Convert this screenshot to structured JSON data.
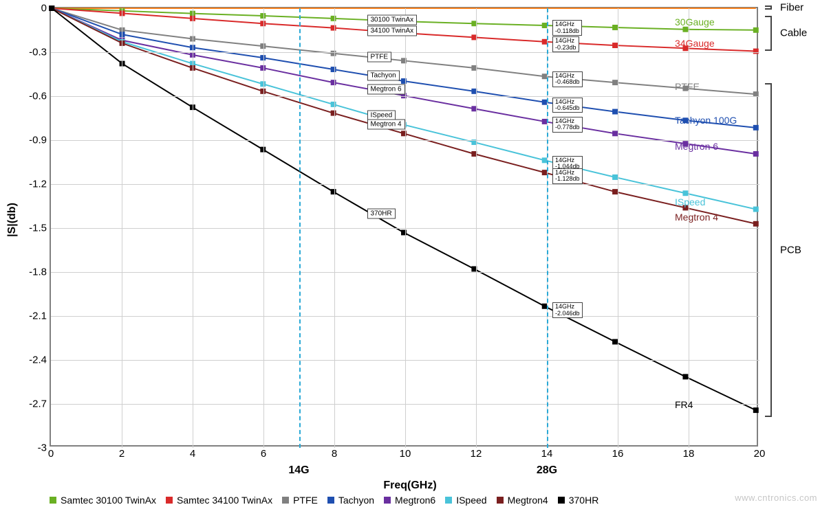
{
  "chart": {
    "type": "line",
    "xlabel": "Freq(GHz)",
    "ylabel": "|S|(db)",
    "xlim": [
      0,
      20
    ],
    "ylim": [
      -3,
      0
    ],
    "xtick_step": 2,
    "ytick_step": 0.3,
    "xticks": [
      0,
      2,
      4,
      6,
      8,
      10,
      12,
      14,
      16,
      18,
      20
    ],
    "yticks": [
      0,
      -0.3,
      -0.6,
      -0.9,
      -1.2,
      -1.5,
      -1.8,
      -2.1,
      -2.4,
      -2.7,
      -3
    ],
    "grid_color": "#cfcfcf",
    "background_color": "#ffffff",
    "axis_color": "#808080",
    "line_width": 2,
    "marker_size": 8,
    "marker_style": "square",
    "label_fontsize": 15,
    "axis_title_fontsize": 16,
    "reference_lines": {
      "color": "#2aa9d6",
      "dash": "5,4",
      "lines": [
        {
          "x": 7,
          "sublabel": "14G"
        },
        {
          "x": 14,
          "sublabel": "28G"
        }
      ]
    },
    "series": [
      {
        "name": "Fiber",
        "legend": null,
        "color": "#f58220",
        "end_label": null,
        "x": [
          0,
          2,
          4,
          6,
          8,
          10,
          12,
          14,
          16,
          18,
          20
        ],
        "y": [
          0,
          0,
          0,
          0,
          0,
          0,
          0,
          0,
          0,
          0,
          0
        ],
        "markers": false,
        "line_box": null,
        "callout": null
      },
      {
        "name": "Samtec 30100 TwinAx",
        "legend": "Samtec 30100 TwinAx",
        "color": "#6ab023",
        "end_label": "30Gauge",
        "x": [
          0,
          2,
          4,
          6,
          8,
          10,
          12,
          14,
          16,
          18,
          20
        ],
        "y": [
          0,
          -0.018,
          -0.036,
          -0.052,
          -0.07,
          -0.09,
          -0.105,
          -0.118,
          -0.132,
          -0.145,
          -0.15
        ],
        "markers": true,
        "line_box": {
          "text": "30100 TwinAx",
          "x": 9
        },
        "callout": {
          "x": 14,
          "lines": [
            "14GHz",
            "-0.118db"
          ]
        }
      },
      {
        "name": "Samtec 34100 TwinAx",
        "legend": "Samtec 34100 TwinAx",
        "color": "#d92a2a",
        "end_label": "34Gauge",
        "x": [
          0,
          2,
          4,
          6,
          8,
          10,
          12,
          14,
          16,
          18,
          20
        ],
        "y": [
          0,
          -0.035,
          -0.07,
          -0.105,
          -0.135,
          -0.17,
          -0.2,
          -0.23,
          -0.255,
          -0.275,
          -0.295
        ],
        "markers": true,
        "line_box": {
          "text": "34100 TwinAx",
          "x": 9
        },
        "callout": {
          "x": 14,
          "lines": [
            "14GHz",
            "-0.23db"
          ]
        }
      },
      {
        "name": "PTFE",
        "legend": "PTFE",
        "color": "#808080",
        "end_label": "PTFE",
        "x": [
          0,
          2,
          4,
          6,
          8,
          10,
          12,
          14,
          16,
          18,
          20
        ],
        "y": [
          0,
          -0.15,
          -0.21,
          -0.26,
          -0.31,
          -0.36,
          -0.41,
          -0.468,
          -0.51,
          -0.55,
          -0.59
        ],
        "markers": true,
        "line_box": {
          "text": "PTFE",
          "x": 9
        },
        "callout": {
          "x": 14,
          "lines": [
            "14GHz",
            "-0.468db"
          ]
        }
      },
      {
        "name": "Tachyon",
        "legend": "Tachyon",
        "color": "#1f4fb0",
        "end_label": "Tachyon 100G",
        "x": [
          0,
          2,
          4,
          6,
          8,
          10,
          12,
          14,
          16,
          18,
          20
        ],
        "y": [
          0,
          -0.18,
          -0.27,
          -0.34,
          -0.42,
          -0.5,
          -0.57,
          -0.645,
          -0.71,
          -0.77,
          -0.82
        ],
        "markers": true,
        "line_box": {
          "text": "Tachyon",
          "x": 9
        },
        "callout": {
          "x": 14,
          "lines": [
            "14GHz",
            "-0.645db"
          ]
        }
      },
      {
        "name": "Megtron6",
        "legend": "Megtron6",
        "color": "#6a2fa0",
        "end_label": "Megtron 6",
        "x": [
          0,
          2,
          4,
          6,
          8,
          10,
          12,
          14,
          16,
          18,
          20
        ],
        "y": [
          0,
          -0.22,
          -0.32,
          -0.41,
          -0.51,
          -0.6,
          -0.69,
          -0.778,
          -0.86,
          -0.93,
          -1.0
        ],
        "markers": true,
        "line_box": {
          "text": "Megtron 6",
          "x": 9
        },
        "callout": {
          "x": 14,
          "lines": [
            "14GHz",
            "-0.778db"
          ]
        }
      },
      {
        "name": "ISpeed",
        "legend": "ISpeed",
        "color": "#49c3d9",
        "end_label": "ISpeed",
        "x": [
          0,
          2,
          4,
          6,
          8,
          10,
          12,
          14,
          16,
          18,
          20
        ],
        "y": [
          0,
          -0.23,
          -0.38,
          -0.52,
          -0.66,
          -0.8,
          -0.92,
          -1.044,
          -1.16,
          -1.27,
          -1.38
        ],
        "markers": true,
        "line_box": {
          "text": "ISpeed",
          "x": 9
        },
        "callout": {
          "x": 14,
          "lines": [
            "14GHz",
            "-1.044db"
          ]
        }
      },
      {
        "name": "Megtron4",
        "legend": "Megtron4",
        "color": "#7a1f1f",
        "end_label": "Megtron 4",
        "x": [
          0,
          2,
          4,
          6,
          8,
          10,
          12,
          14,
          16,
          18,
          20
        ],
        "y": [
          0,
          -0.24,
          -0.41,
          -0.57,
          -0.72,
          -0.86,
          -1.0,
          -1.128,
          -1.26,
          -1.37,
          -1.48
        ],
        "markers": true,
        "line_box": {
          "text": "Megtron 4",
          "x": 9
        },
        "callout": {
          "x": 14,
          "lines": [
            "14GHz",
            "-1.128db"
          ]
        }
      },
      {
        "name": "370HR",
        "legend": "370HR",
        "color": "#000000",
        "end_label": "FR4",
        "x": [
          0,
          2,
          4,
          6,
          8,
          10,
          12,
          14,
          16,
          18,
          20
        ],
        "y": [
          0,
          -0.38,
          -0.68,
          -0.97,
          -1.26,
          -1.54,
          -1.79,
          -2.046,
          -2.29,
          -2.53,
          -2.76
        ],
        "markers": true,
        "line_box": {
          "text": "370HR",
          "x": 9
        },
        "callout": {
          "x": 14,
          "lines": [
            "14GHz",
            "-2.046db"
          ]
        }
      }
    ],
    "groups": [
      {
        "label": "Fiber",
        "y_from": 0.01,
        "y_to": -0.02
      },
      {
        "label": "Cable",
        "y_from": -0.06,
        "y_to": -0.3
      },
      {
        "label": "PCB",
        "y_from": -0.52,
        "y_to": -2.8
      }
    ]
  },
  "watermark": "www.cntronics.com"
}
